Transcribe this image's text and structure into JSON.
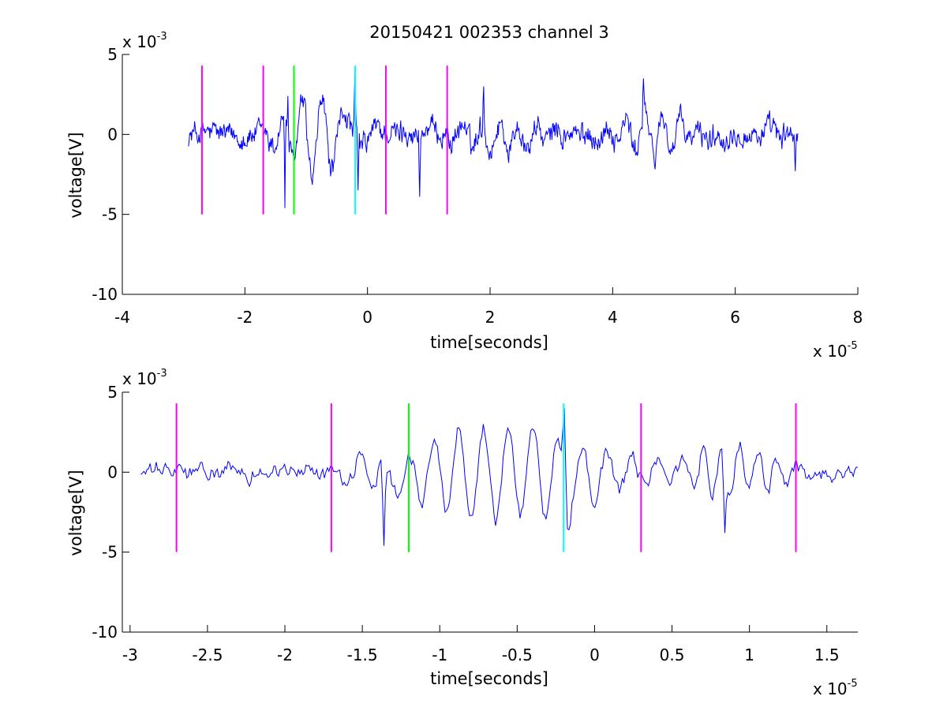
{
  "figure": {
    "title": "20150421 002353 channel 3"
  },
  "chart_data": [
    {
      "type": "line",
      "title": "20150421 002353 channel 3",
      "xlabel": "time[seconds]",
      "ylabel": "voltage[V]",
      "x_multiplier": {
        "base": "x 10",
        "exponent": "-5"
      },
      "y_multiplier": {
        "base": "x 10",
        "exponent": "-3"
      },
      "xlim": [
        -4,
        8
      ],
      "ylim": [
        -10,
        5
      ],
      "xticks": [
        -4,
        -2,
        0,
        2,
        4,
        6,
        8
      ],
      "xtick_labels": [
        "-4",
        "-2",
        "0",
        "2",
        "4",
        "6",
        "8"
      ],
      "yticks": [
        -10,
        -5,
        0,
        5
      ],
      "ytick_labels": [
        "-10",
        "-5",
        "0",
        "5"
      ],
      "grid": false,
      "signal": {
        "color": "#0000ff",
        "x_start": -2.92,
        "x_end": 7.02,
        "n_points": 1000,
        "noise_amp": 0.65,
        "features": [
          {
            "kind": "burst",
            "center": -0.9,
            "width": 0.55,
            "amp": 2.6,
            "period": 0.32
          },
          {
            "kind": "burst",
            "center": -0.2,
            "width": 0.35,
            "amp": 1.2,
            "period": 0.5
          },
          {
            "kind": "burst",
            "center": 2.2,
            "width": 0.9,
            "amp": 0.9,
            "period": 0.3
          },
          {
            "kind": "burst",
            "center": 4.6,
            "width": 0.6,
            "amp": 1.3,
            "period": 0.3
          },
          {
            "kind": "spike",
            "at": -1.35,
            "value": -4.6
          },
          {
            "kind": "spike",
            "at": -1.3,
            "value": 2.4
          },
          {
            "kind": "spike",
            "at": -0.2,
            "value": 4.0
          },
          {
            "kind": "spike",
            "at": -0.15,
            "value": -3.5
          },
          {
            "kind": "spike",
            "at": 0.85,
            "value": -3.9
          },
          {
            "kind": "spike",
            "at": 1.9,
            "value": 3.0
          },
          {
            "kind": "spike",
            "at": 4.5,
            "value": 3.5
          },
          {
            "kind": "spike",
            "at": 6.98,
            "value": -2.3
          }
        ]
      },
      "markers": [
        {
          "x": -2.7,
          "color": "#ff00ff",
          "ymin": -5,
          "ymax": 4.3
        },
        {
          "x": -1.7,
          "color": "#ff00ff",
          "ymin": -5,
          "ymax": 4.3
        },
        {
          "x": -1.2,
          "color": "#00ff00",
          "ymin": -5,
          "ymax": 4.3
        },
        {
          "x": -0.2,
          "color": "#00ffff",
          "ymin": -5,
          "ymax": 4.3
        },
        {
          "x": 0.3,
          "color": "#ff00ff",
          "ymin": -5,
          "ymax": 4.3
        },
        {
          "x": 1.3,
          "color": "#ff00ff",
          "ymin": -5,
          "ymax": 4.3
        }
      ]
    },
    {
      "type": "line",
      "title": "",
      "xlabel": "time[seconds]",
      "ylabel": "voltage[V]",
      "x_multiplier": {
        "base": "x 10",
        "exponent": "-5"
      },
      "y_multiplier": {
        "base": "x 10",
        "exponent": "-3"
      },
      "xlim": [
        -3.05,
        1.7
      ],
      "ylim": [
        -10,
        5
      ],
      "xticks": [
        -3,
        -2.5,
        -2,
        -1.5,
        -1,
        -0.5,
        0,
        0.5,
        1,
        1.5
      ],
      "xtick_labels": [
        "-3",
        "-2.5",
        "-2",
        "-1.5",
        "-1",
        "-0.5",
        "0",
        "0.5",
        "1",
        "1.5"
      ],
      "yticks": [
        -10,
        -5,
        0,
        5
      ],
      "ytick_labels": [
        "-10",
        "-5",
        "0",
        "5"
      ],
      "grid": false,
      "signal": {
        "color": "#0000ff",
        "x_start": -2.93,
        "x_end": 1.7,
        "n_points": 470,
        "noise_amp": 0.45,
        "features": [
          {
            "kind": "burst",
            "center": -0.55,
            "width": 0.75,
            "amp": 3.0,
            "period": 0.16
          },
          {
            "kind": "burst",
            "center": 0.9,
            "width": 0.35,
            "amp": 1.6,
            "period": 0.12
          },
          {
            "kind": "spike",
            "at": -1.36,
            "value": -4.6
          },
          {
            "kind": "spike",
            "at": -0.2,
            "value": 4.0
          },
          {
            "kind": "spike",
            "at": -0.17,
            "value": -3.6
          },
          {
            "kind": "spike",
            "at": 0.84,
            "value": -3.8
          }
        ]
      },
      "markers": [
        {
          "x": -2.7,
          "color": "#ff00ff",
          "ymin": -5,
          "ymax": 4.3
        },
        {
          "x": -1.7,
          "color": "#ff00ff",
          "ymin": -5,
          "ymax": 4.3
        },
        {
          "x": -1.2,
          "color": "#00ff00",
          "ymin": -5,
          "ymax": 4.3
        },
        {
          "x": -0.2,
          "color": "#00ffff",
          "ymin": -5,
          "ymax": 4.3
        },
        {
          "x": 0.3,
          "color": "#ff00ff",
          "ymin": -5,
          "ymax": 4.3
        },
        {
          "x": 1.3,
          "color": "#ff00ff",
          "ymin": -5,
          "ymax": 4.3
        }
      ]
    }
  ]
}
